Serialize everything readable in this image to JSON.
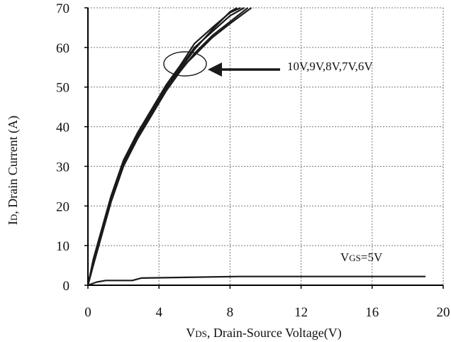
{
  "chart_data": {
    "type": "line",
    "title": "",
    "xlabel": {
      "main": "V",
      "sub": "DS",
      "rest": ", Drain-Source Voltage(V)"
    },
    "ylabel": {
      "main": "I",
      "sub": "D",
      "rest": ", Drain Current (A)"
    },
    "xlim": [
      0,
      20
    ],
    "ylim": [
      0,
      70
    ],
    "xticks": [
      0,
      4,
      8,
      12,
      16,
      20
    ],
    "yticks": [
      0,
      10,
      20,
      30,
      40,
      50,
      60,
      70
    ],
    "grid": true,
    "series": [
      {
        "name": "10V",
        "x": [
          0,
          0.3,
          0.8,
          1.3,
          2.0,
          2.8,
          3.6,
          4.4,
          5.2,
          6.0,
          7.0,
          8.0,
          8.8
        ],
        "y": [
          0,
          6,
          14,
          22,
          31,
          38,
          44,
          50,
          55,
          60,
          64,
          68,
          70
        ]
      },
      {
        "name": "9V",
        "x": [
          0,
          0.3,
          0.8,
          1.3,
          2.0,
          2.8,
          3.6,
          4.4,
          5.2,
          6.0,
          7.0,
          8.0,
          8.6
        ],
        "y": [
          0,
          6.5,
          14.5,
          22.5,
          31.5,
          38.5,
          44.5,
          50.5,
          55.5,
          61,
          65,
          68.8,
          70
        ]
      },
      {
        "name": "8V",
        "x": [
          0,
          0.3,
          0.8,
          1.3,
          2.0,
          2.8,
          3.6,
          4.4,
          5.2,
          6.0,
          7.0,
          8.0,
          8.4
        ],
        "y": [
          0,
          5.5,
          13.5,
          21.5,
          30.5,
          37.5,
          43.5,
          49.5,
          54.5,
          59.5,
          64.5,
          69,
          70
        ]
      },
      {
        "name": "7V",
        "x": [
          0,
          0.3,
          0.8,
          1.3,
          2.0,
          2.8,
          3.6,
          4.4,
          5.2,
          6.0,
          7.0,
          8.0,
          9.0
        ],
        "y": [
          0,
          5,
          13,
          21,
          30,
          37,
          43,
          49,
          54,
          58.5,
          63,
          66.5,
          70
        ]
      },
      {
        "name": "6V",
        "x": [
          0,
          0.3,
          0.8,
          1.3,
          2.0,
          2.8,
          3.6,
          4.4,
          5.2,
          6.0,
          7.0,
          8.0,
          9.2
        ],
        "y": [
          0,
          6,
          14,
          22,
          31,
          38,
          44,
          50,
          54.5,
          58,
          62.5,
          66,
          70
        ]
      },
      {
        "name": "VGS=5V",
        "x": [
          0,
          0.5,
          1.0,
          2.5,
          3.0,
          8.5,
          19.0
        ],
        "y": [
          0,
          0.8,
          1.2,
          1.2,
          1.8,
          2.2,
          2.2
        ]
      }
    ],
    "annotations": [
      {
        "text": "10V,9V,8V,7V,6V",
        "ellipse_center": [
          5.4,
          56
        ]
      },
      {
        "text": {
          "main": "V",
          "sub": "GS",
          "rest": "=5V"
        }
      }
    ],
    "colors": {
      "line": "#1a1a1a",
      "grid": "#777777",
      "axis": "#000000",
      "background": "#ffffff"
    }
  }
}
